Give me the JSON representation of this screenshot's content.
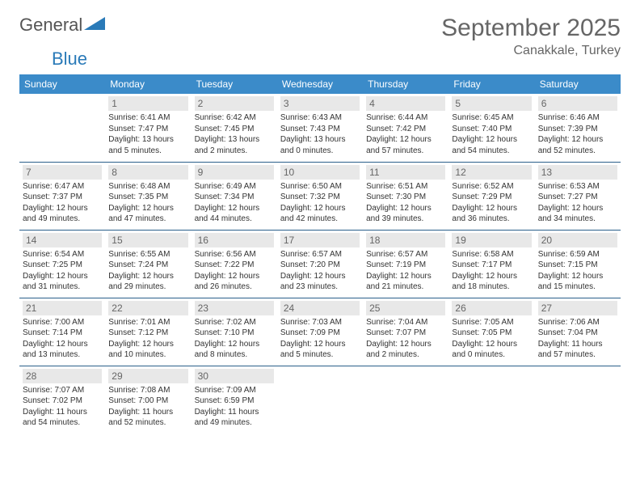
{
  "logo": {
    "text1": "General",
    "text2": "Blue"
  },
  "title": "September 2025",
  "location": "Canakkale, Turkey",
  "colors": {
    "header_bg": "#3b8bc9",
    "header_text": "#ffffff",
    "daynum_bg": "#e8e8e8",
    "daynum_text": "#666666",
    "row_border": "#2a5f8a",
    "title_text": "#666666",
    "body_text": "#333333",
    "logo_blue": "#2a7ab8"
  },
  "weekdays": [
    "Sunday",
    "Monday",
    "Tuesday",
    "Wednesday",
    "Thursday",
    "Friday",
    "Saturday"
  ],
  "weeks": [
    [
      {
        "day": "",
        "sunrise": "",
        "sunset": "",
        "daylight": ""
      },
      {
        "day": "1",
        "sunrise": "Sunrise: 6:41 AM",
        "sunset": "Sunset: 7:47 PM",
        "daylight": "Daylight: 13 hours and 5 minutes."
      },
      {
        "day": "2",
        "sunrise": "Sunrise: 6:42 AM",
        "sunset": "Sunset: 7:45 PM",
        "daylight": "Daylight: 13 hours and 2 minutes."
      },
      {
        "day": "3",
        "sunrise": "Sunrise: 6:43 AM",
        "sunset": "Sunset: 7:43 PM",
        "daylight": "Daylight: 13 hours and 0 minutes."
      },
      {
        "day": "4",
        "sunrise": "Sunrise: 6:44 AM",
        "sunset": "Sunset: 7:42 PM",
        "daylight": "Daylight: 12 hours and 57 minutes."
      },
      {
        "day": "5",
        "sunrise": "Sunrise: 6:45 AM",
        "sunset": "Sunset: 7:40 PM",
        "daylight": "Daylight: 12 hours and 54 minutes."
      },
      {
        "day": "6",
        "sunrise": "Sunrise: 6:46 AM",
        "sunset": "Sunset: 7:39 PM",
        "daylight": "Daylight: 12 hours and 52 minutes."
      }
    ],
    [
      {
        "day": "7",
        "sunrise": "Sunrise: 6:47 AM",
        "sunset": "Sunset: 7:37 PM",
        "daylight": "Daylight: 12 hours and 49 minutes."
      },
      {
        "day": "8",
        "sunrise": "Sunrise: 6:48 AM",
        "sunset": "Sunset: 7:35 PM",
        "daylight": "Daylight: 12 hours and 47 minutes."
      },
      {
        "day": "9",
        "sunrise": "Sunrise: 6:49 AM",
        "sunset": "Sunset: 7:34 PM",
        "daylight": "Daylight: 12 hours and 44 minutes."
      },
      {
        "day": "10",
        "sunrise": "Sunrise: 6:50 AM",
        "sunset": "Sunset: 7:32 PM",
        "daylight": "Daylight: 12 hours and 42 minutes."
      },
      {
        "day": "11",
        "sunrise": "Sunrise: 6:51 AM",
        "sunset": "Sunset: 7:30 PM",
        "daylight": "Daylight: 12 hours and 39 minutes."
      },
      {
        "day": "12",
        "sunrise": "Sunrise: 6:52 AM",
        "sunset": "Sunset: 7:29 PM",
        "daylight": "Daylight: 12 hours and 36 minutes."
      },
      {
        "day": "13",
        "sunrise": "Sunrise: 6:53 AM",
        "sunset": "Sunset: 7:27 PM",
        "daylight": "Daylight: 12 hours and 34 minutes."
      }
    ],
    [
      {
        "day": "14",
        "sunrise": "Sunrise: 6:54 AM",
        "sunset": "Sunset: 7:25 PM",
        "daylight": "Daylight: 12 hours and 31 minutes."
      },
      {
        "day": "15",
        "sunrise": "Sunrise: 6:55 AM",
        "sunset": "Sunset: 7:24 PM",
        "daylight": "Daylight: 12 hours and 29 minutes."
      },
      {
        "day": "16",
        "sunrise": "Sunrise: 6:56 AM",
        "sunset": "Sunset: 7:22 PM",
        "daylight": "Daylight: 12 hours and 26 minutes."
      },
      {
        "day": "17",
        "sunrise": "Sunrise: 6:57 AM",
        "sunset": "Sunset: 7:20 PM",
        "daylight": "Daylight: 12 hours and 23 minutes."
      },
      {
        "day": "18",
        "sunrise": "Sunrise: 6:57 AM",
        "sunset": "Sunset: 7:19 PM",
        "daylight": "Daylight: 12 hours and 21 minutes."
      },
      {
        "day": "19",
        "sunrise": "Sunrise: 6:58 AM",
        "sunset": "Sunset: 7:17 PM",
        "daylight": "Daylight: 12 hours and 18 minutes."
      },
      {
        "day": "20",
        "sunrise": "Sunrise: 6:59 AM",
        "sunset": "Sunset: 7:15 PM",
        "daylight": "Daylight: 12 hours and 15 minutes."
      }
    ],
    [
      {
        "day": "21",
        "sunrise": "Sunrise: 7:00 AM",
        "sunset": "Sunset: 7:14 PM",
        "daylight": "Daylight: 12 hours and 13 minutes."
      },
      {
        "day": "22",
        "sunrise": "Sunrise: 7:01 AM",
        "sunset": "Sunset: 7:12 PM",
        "daylight": "Daylight: 12 hours and 10 minutes."
      },
      {
        "day": "23",
        "sunrise": "Sunrise: 7:02 AM",
        "sunset": "Sunset: 7:10 PM",
        "daylight": "Daylight: 12 hours and 8 minutes."
      },
      {
        "day": "24",
        "sunrise": "Sunrise: 7:03 AM",
        "sunset": "Sunset: 7:09 PM",
        "daylight": "Daylight: 12 hours and 5 minutes."
      },
      {
        "day": "25",
        "sunrise": "Sunrise: 7:04 AM",
        "sunset": "Sunset: 7:07 PM",
        "daylight": "Daylight: 12 hours and 2 minutes."
      },
      {
        "day": "26",
        "sunrise": "Sunrise: 7:05 AM",
        "sunset": "Sunset: 7:05 PM",
        "daylight": "Daylight: 12 hours and 0 minutes."
      },
      {
        "day": "27",
        "sunrise": "Sunrise: 7:06 AM",
        "sunset": "Sunset: 7:04 PM",
        "daylight": "Daylight: 11 hours and 57 minutes."
      }
    ],
    [
      {
        "day": "28",
        "sunrise": "Sunrise: 7:07 AM",
        "sunset": "Sunset: 7:02 PM",
        "daylight": "Daylight: 11 hours and 54 minutes."
      },
      {
        "day": "29",
        "sunrise": "Sunrise: 7:08 AM",
        "sunset": "Sunset: 7:00 PM",
        "daylight": "Daylight: 11 hours and 52 minutes."
      },
      {
        "day": "30",
        "sunrise": "Sunrise: 7:09 AM",
        "sunset": "Sunset: 6:59 PM",
        "daylight": "Daylight: 11 hours and 49 minutes."
      },
      {
        "day": "",
        "sunrise": "",
        "sunset": "",
        "daylight": ""
      },
      {
        "day": "",
        "sunrise": "",
        "sunset": "",
        "daylight": ""
      },
      {
        "day": "",
        "sunrise": "",
        "sunset": "",
        "daylight": ""
      },
      {
        "day": "",
        "sunrise": "",
        "sunset": "",
        "daylight": ""
      }
    ]
  ]
}
